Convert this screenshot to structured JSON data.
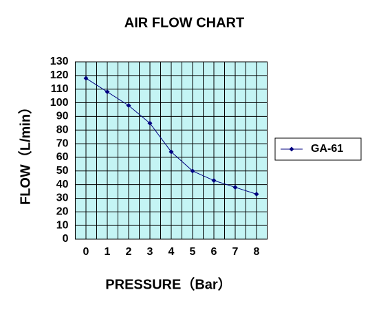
{
  "chart_data": {
    "type": "line",
    "title": "AIR FLOW CHART",
    "x_label": "PRESSURE（Bar）",
    "y_label": "FLOW（L/min）",
    "x": [
      0,
      1,
      2,
      3,
      4,
      5,
      6,
      7,
      8
    ],
    "series": [
      {
        "name": "GA-61",
        "color": "#000080",
        "values": [
          118,
          108,
          98,
          85,
          64,
          50,
          43,
          38,
          33
        ]
      }
    ],
    "xlim": [
      -0.5,
      8.5
    ],
    "xticks": [
      0,
      1,
      2,
      3,
      4,
      5,
      6,
      7,
      8
    ],
    "ylim": [
      0,
      130
    ],
    "yticks": [
      0,
      10,
      20,
      30,
      40,
      50,
      60,
      70,
      80,
      90,
      100,
      110,
      120,
      130
    ],
    "grid": true,
    "legend": "right"
  }
}
